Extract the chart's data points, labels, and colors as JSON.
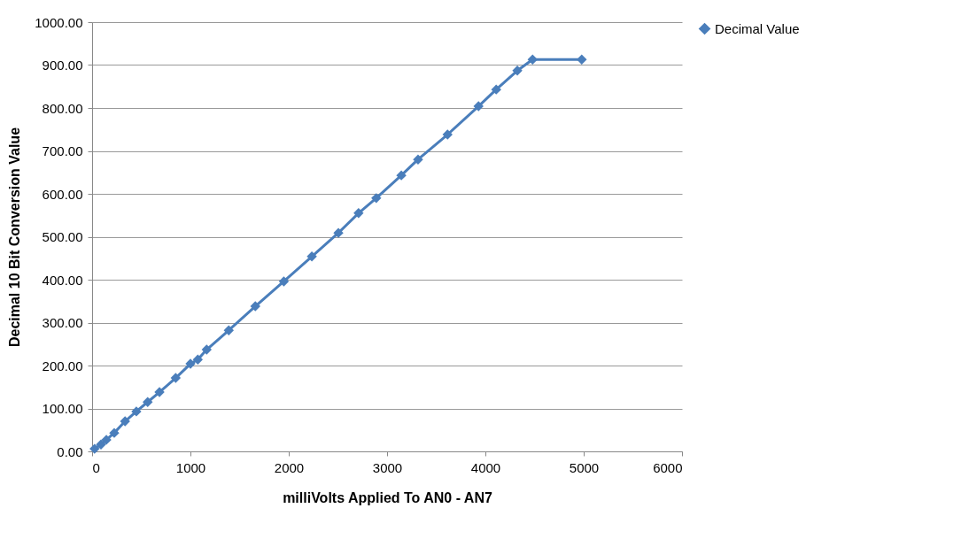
{
  "chart_data": {
    "type": "line",
    "xlabel": "milliVolts Applied To AN0 - AN7",
    "ylabel": "Decimal 10 Bit Conversion Value",
    "x": [
      25,
      90,
      145,
      225,
      335,
      450,
      565,
      685,
      850,
      1000,
      1075,
      1165,
      1390,
      1660,
      1950,
      2235,
      2505,
      2710,
      2890,
      3145,
      3315,
      3615,
      3930,
      4110,
      4325,
      4480,
      4980
    ],
    "series": [
      {
        "name": "Decimal Value",
        "color": "#4a7ebb",
        "values": [
          6,
          16,
          27,
          43,
          70,
          93,
          115,
          138,
          171,
          204,
          214,
          237,
          282,
          338,
          396,
          454,
          509,
          555,
          590,
          643,
          680,
          738,
          804,
          843,
          887,
          913,
          913
        ]
      }
    ],
    "xlim": [
      0,
      6000
    ],
    "xticks": [
      0,
      1000,
      2000,
      3000,
      4000,
      5000,
      6000
    ],
    "ylim": [
      0,
      1000
    ],
    "yticks": [
      {
        "value": 0,
        "label": "0.00"
      },
      {
        "value": 100,
        "label": "100.00"
      },
      {
        "value": 200,
        "label": "200.00"
      },
      {
        "value": 300,
        "label": "300.00"
      },
      {
        "value": 400,
        "label": "400.00"
      },
      {
        "value": 500,
        "label": "500.00"
      },
      {
        "value": 600,
        "label": "600.00"
      },
      {
        "value": 700,
        "label": "700.00"
      },
      {
        "value": 800,
        "label": "800.00"
      },
      {
        "value": 900,
        "label": "900.00"
      },
      {
        "value": 1000,
        "label": "1000.00"
      }
    ],
    "grid": "y",
    "legend": "right",
    "marker": "diamond",
    "line_style": "solid"
  }
}
